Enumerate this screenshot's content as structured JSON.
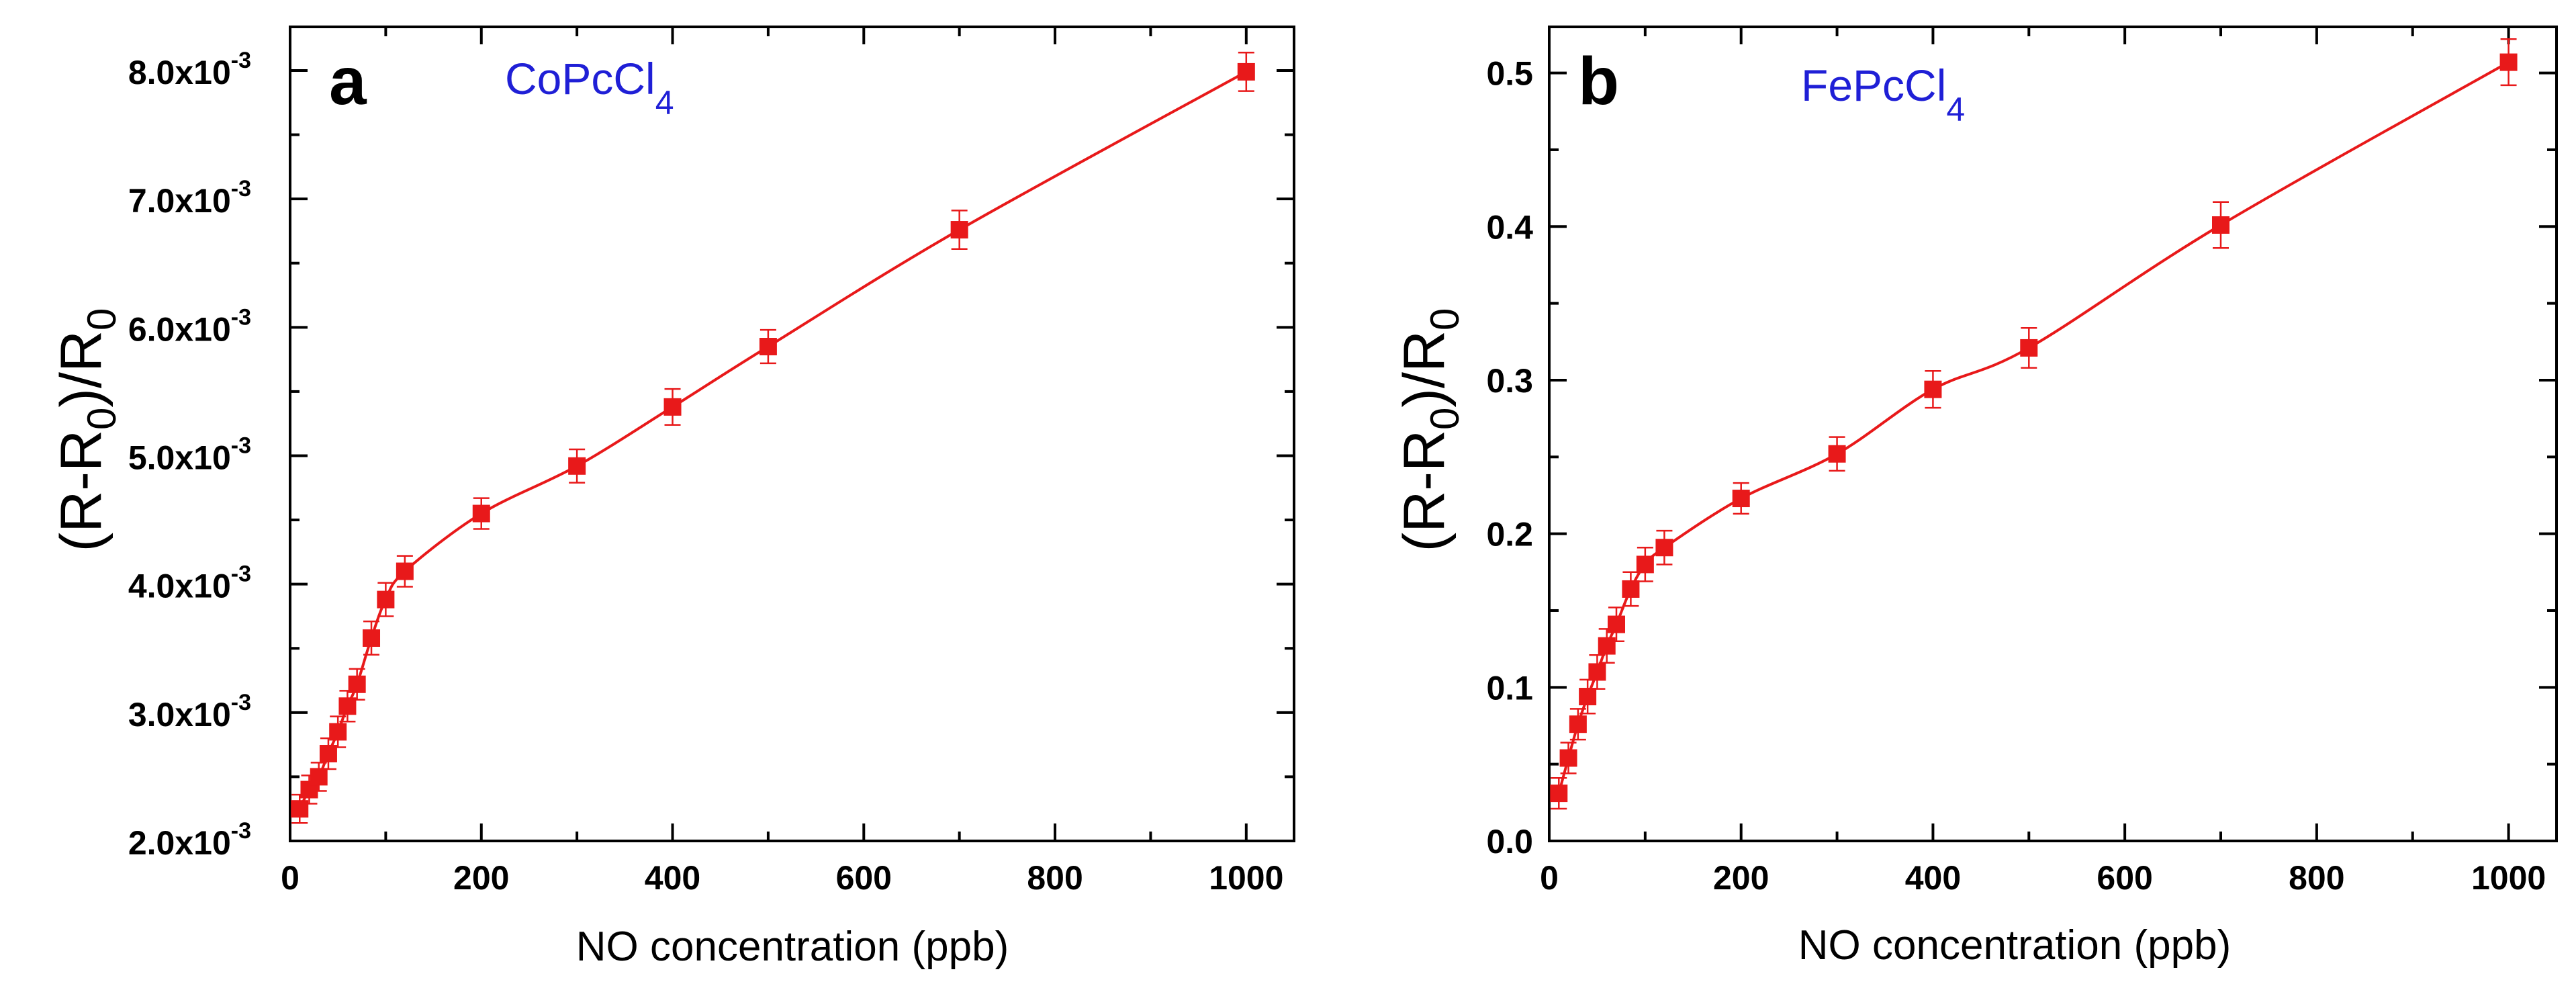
{
  "colors": {
    "series": "#e8191a",
    "compound": "#1f1fd6",
    "axis": "#000000"
  },
  "chart_data": [
    {
      "type": "line",
      "panel_letter": "a",
      "compound_base": "CoPcCl",
      "compound_subscript": "4",
      "xlabel": "NO concentration (ppb)",
      "ylabel_parts": [
        "(R-R",
        "0",
        ")/R",
        "0"
      ],
      "xlim": [
        0,
        1050
      ],
      "ylim": [
        0.002,
        0.00834
      ],
      "xticks": [
        0,
        200,
        400,
        600,
        800,
        1000
      ],
      "xtick_labels": [
        "0",
        "200",
        "400",
        "600",
        "800",
        "1000"
      ],
      "yticks": [
        0.002,
        0.003,
        0.004,
        0.005,
        0.006,
        0.007,
        0.008
      ],
      "ytick_mantissas": [
        "2.0x10",
        "3.0x10",
        "4.0x10",
        "5.0x10",
        "6.0x10",
        "7.0x10",
        "8.0x10"
      ],
      "ytick_exponents": [
        "-3",
        "-3",
        "-3",
        "-3",
        "-3",
        "-3",
        "-3"
      ],
      "series": [
        {
          "name": "CoPcCl4",
          "x": [
            10,
            20,
            30,
            40,
            50,
            60,
            70,
            85,
            100,
            120,
            200,
            300,
            400,
            500,
            700,
            1000
          ],
          "y": [
            0.00225,
            0.0024,
            0.0025,
            0.00268,
            0.00285,
            0.00305,
            0.00322,
            0.00358,
            0.00388,
            0.0041,
            0.00455,
            0.00492,
            0.00538,
            0.00585,
            0.00676,
            0.00799
          ],
          "error": [
            0.00011,
            0.00011,
            0.00011,
            0.00012,
            0.00012,
            0.00012,
            0.00012,
            0.00013,
            0.00013,
            0.00012,
            0.00012,
            0.00013,
            0.00014,
            0.00013,
            0.00015,
            0.00015
          ]
        }
      ]
    },
    {
      "type": "line",
      "panel_letter": "b",
      "compound_base": "FePcCl",
      "compound_subscript": "4",
      "xlabel": "NO concentration (ppb)",
      "ylabel_parts": [
        "(R-R",
        "0",
        ")/R",
        "0"
      ],
      "xlim": [
        0,
        1050
      ],
      "ylim": [
        0,
        0.53
      ],
      "xticks": [
        0,
        200,
        400,
        600,
        800,
        1000
      ],
      "xtick_labels": [
        "0",
        "200",
        "400",
        "600",
        "800",
        "1000"
      ],
      "yticks": [
        0,
        0.1,
        0.2,
        0.3,
        0.4,
        0.5
      ],
      "ytick_labels": [
        "0.0",
        "0.1",
        "0.2",
        "0.3",
        "0.4",
        "0.5"
      ],
      "series": [
        {
          "name": "FePcCl4",
          "x": [
            10,
            20,
            30,
            40,
            50,
            60,
            70,
            85,
            100,
            120,
            200,
            300,
            400,
            500,
            700,
            1000
          ],
          "y": [
            0.031,
            0.054,
            0.076,
            0.094,
            0.11,
            0.127,
            0.141,
            0.164,
            0.18,
            0.191,
            0.223,
            0.252,
            0.294,
            0.321,
            0.401,
            0.507
          ],
          "error": [
            0.01,
            0.01,
            0.01,
            0.011,
            0.011,
            0.011,
            0.011,
            0.011,
            0.011,
            0.011,
            0.01,
            0.011,
            0.012,
            0.013,
            0.015,
            0.015
          ]
        }
      ]
    }
  ]
}
